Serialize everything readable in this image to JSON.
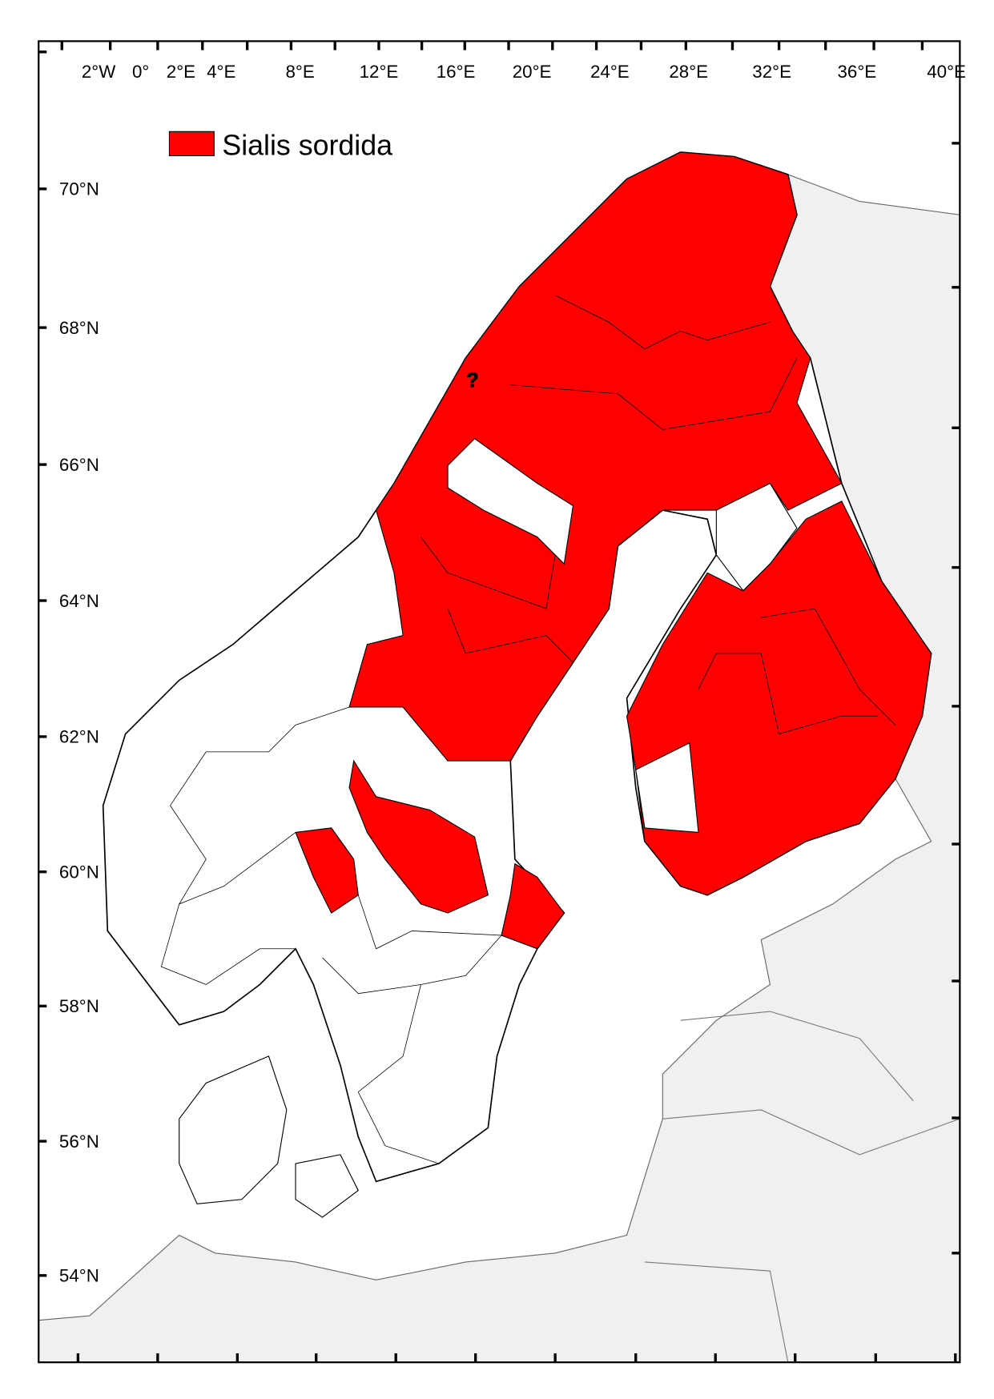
{
  "legend": {
    "label": "Sialis sordida",
    "color": "#ff0000"
  },
  "colors": {
    "presence": "#ff0000",
    "land": "#ffffff",
    "other_land": "#f0f0f0",
    "border": "#000000"
  },
  "axes": {
    "top_labels": [
      "2°W",
      "0°",
      "2°E",
      "4°E",
      "8°E",
      "12°E",
      "16°E",
      "20°E",
      "24°E",
      "28°E",
      "32°E",
      "36°E",
      "40°E"
    ],
    "left_labels": [
      "70°N",
      "68°N",
      "66°N",
      "64°N",
      "62°N",
      "60°N",
      "58°N",
      "56°N",
      "54°N"
    ]
  },
  "marker": {
    "symbol": "?"
  }
}
